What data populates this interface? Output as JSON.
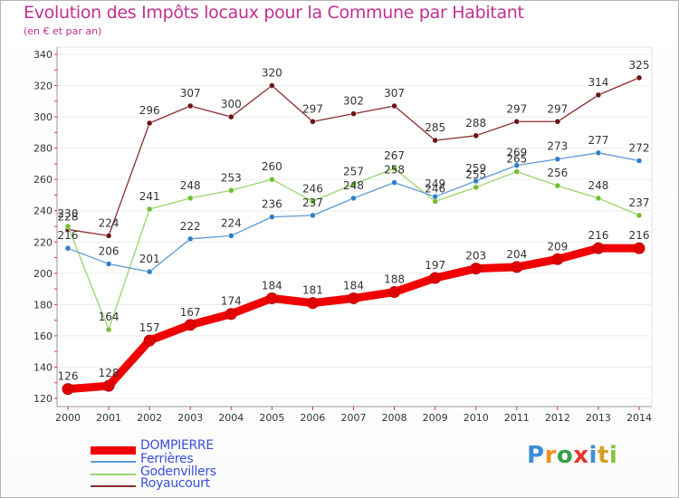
{
  "header": {
    "title": "Evolution des Impôts locaux pour la Commune par Habitant",
    "subtitle": "(en € et par an)"
  },
  "brand": {
    "letters": [
      "P",
      "r",
      "o",
      "x",
      "i",
      "t",
      "i"
    ],
    "colors": [
      "#3a8fd8",
      "#f09020",
      "#3aa048",
      "#e8362e",
      "#3a8fd8",
      "#d4a020",
      "#8ac040"
    ]
  },
  "chart_data": {
    "type": "line",
    "title": "Evolution des Impôts locaux pour la Commune par Habitant",
    "subtitle": "(en € et par an)",
    "xlabel": "",
    "ylabel": "",
    "x": [
      "2000",
      "2001",
      "2002",
      "2003",
      "2004",
      "2005",
      "2006",
      "2007",
      "2008",
      "2009",
      "2010",
      "2011",
      "2012",
      "2013",
      "2014"
    ],
    "ylim": [
      120,
      340
    ],
    "yticks": [
      120,
      140,
      160,
      180,
      200,
      220,
      240,
      260,
      280,
      300,
      320,
      340
    ],
    "grid": "horizontal",
    "legend_position": "bottom-left",
    "series": [
      {
        "name": "Royaucourt",
        "color": "#8b2c2c",
        "marker": "#6b1414",
        "values": [
          228,
          224,
          296,
          307,
          300,
          320,
          297,
          302,
          307,
          285,
          288,
          297,
          297,
          314,
          325
        ]
      },
      {
        "name": "Godenvillers",
        "color": "#9ad46a",
        "marker": "#70c030",
        "values": [
          230,
          164,
          241,
          248,
          253,
          260,
          246,
          257,
          267,
          246,
          255,
          265,
          256,
          248,
          237
        ]
      },
      {
        "name": "Ferrières",
        "color": "#5b9bd5",
        "marker": "#2f7fc7",
        "values": [
          216,
          206,
          201,
          222,
          224,
          236,
          237,
          248,
          258,
          249,
          259,
          269,
          273,
          277,
          272
        ]
      },
      {
        "name": "DOMPIERRE",
        "color": "#f00000",
        "marker": "#e00000",
        "values": [
          126,
          128,
          157,
          167,
          174,
          184,
          181,
          184,
          188,
          197,
          203,
          204,
          209,
          216,
          216
        ]
      }
    ],
    "legend": [
      "DOMPIERRE",
      "Ferrières",
      "Godenvillers",
      "Royaucourt"
    ]
  }
}
